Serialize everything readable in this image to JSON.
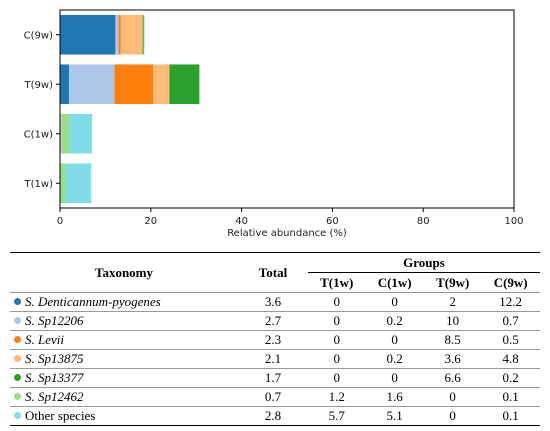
{
  "chart_data": {
    "type": "bar",
    "orientation": "horizontal",
    "stacked": true,
    "categories": [
      "C(9w)",
      "T(9w)",
      "C(1w)",
      "T(1w)"
    ],
    "xlabel": "Relative abundance (%)",
    "xlim": [
      0,
      100
    ],
    "xticks": [
      0,
      20,
      40,
      60,
      80,
      100
    ],
    "grid": false,
    "series": [
      {
        "name": "S. Denticannum-pyogenes",
        "color": "#1f77b4",
        "values": [
          12.2,
          2,
          0,
          0
        ]
      },
      {
        "name": "S. Sp12206",
        "color": "#aec7e8",
        "values": [
          0.7,
          10,
          0.2,
          0
        ]
      },
      {
        "name": "S. Levii",
        "color": "#ff7f0e",
        "values": [
          0.5,
          8.5,
          0,
          0
        ]
      },
      {
        "name": "S. Sp13875",
        "color": "#ffbb78",
        "values": [
          4.8,
          3.6,
          0.2,
          0
        ]
      },
      {
        "name": "S. Sp13377",
        "color": "#2ca02c",
        "values": [
          0.2,
          6.6,
          0,
          0
        ]
      },
      {
        "name": "S. Sp12462",
        "color": "#98df8a",
        "values": [
          0.1,
          0,
          1.6,
          1.2
        ]
      },
      {
        "name": "Other species",
        "color": "#80dde7",
        "values": [
          0.1,
          0,
          5.1,
          5.7
        ]
      }
    ]
  },
  "table": {
    "header_taxonomy": "Taxonomy",
    "header_total": "Total",
    "header_groups": "Groups",
    "group_cols": [
      "T(1w)",
      "C(1w)",
      "T(9w)",
      "C(9w)"
    ],
    "rows": [
      {
        "name": "S. Denticannum-pyogenes",
        "color": "#1f77b4",
        "total": "3.6",
        "vals": [
          "0",
          "0",
          "2",
          "12.2"
        ]
      },
      {
        "name": "S. Sp12206",
        "color": "#aec7e8",
        "total": "2.7",
        "vals": [
          "0",
          "0.2",
          "10",
          "0.7"
        ]
      },
      {
        "name": "S. Levii",
        "color": "#ff7f0e",
        "total": "2.3",
        "vals": [
          "0",
          "0",
          "8.5",
          "0.5"
        ]
      },
      {
        "name": "S. Sp13875",
        "color": "#ffbb78",
        "total": "2.1",
        "vals": [
          "0",
          "0.2",
          "3.6",
          "4.8"
        ]
      },
      {
        "name": "S. Sp13377",
        "color": "#2ca02c",
        "total": "1.7",
        "vals": [
          "0",
          "0",
          "6.6",
          "0.2"
        ]
      },
      {
        "name": "S. Sp12462",
        "color": "#98df8a",
        "total": "0.7",
        "vals": [
          "1.2",
          "1.6",
          "0",
          "0.1"
        ]
      },
      {
        "name": "Other species",
        "color": "#80dde7",
        "total": "2.8",
        "vals": [
          "5.7",
          "5.1",
          "0",
          "0.1"
        ]
      }
    ]
  }
}
